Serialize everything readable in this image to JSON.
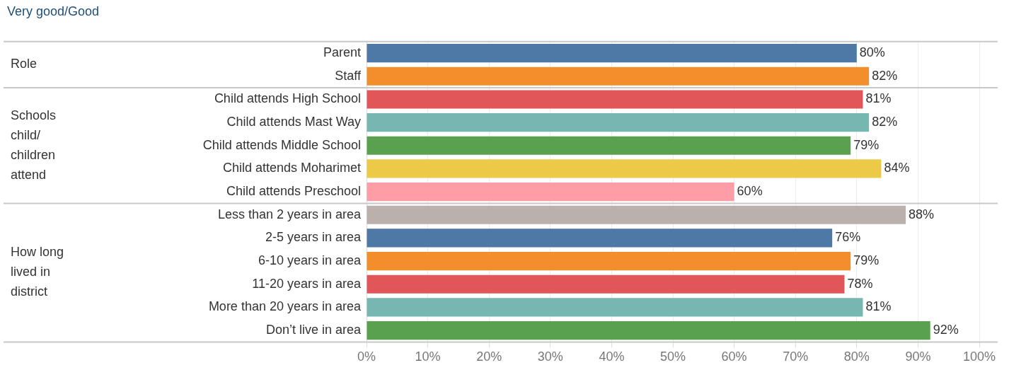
{
  "chart_data": {
    "type": "bar",
    "orientation": "horizontal",
    "subtitle": "Very good/Good",
    "categories": [
      "Parent",
      "Staff",
      "Child attends High School",
      "Child attends Mast Way",
      "Child attends Middle School",
      "Child attends Moharimet",
      "Child attends Preschool",
      "Less than 2 years in area",
      "2-5 years in area",
      "6-10 years in area",
      "11-20 years in area",
      "More than 20 years in area",
      "Don’t live in area"
    ],
    "values": [
      80,
      82,
      81,
      82,
      79,
      84,
      60,
      88,
      76,
      79,
      78,
      81,
      92
    ],
    "value_labels": [
      "80%",
      "82%",
      "81%",
      "82%",
      "79%",
      "84%",
      "60%",
      "88%",
      "76%",
      "79%",
      "78%",
      "81%",
      "92%"
    ],
    "colors": [
      "#4e79a7",
      "#f28e2b",
      "#e15759",
      "#76b7b2",
      "#59a14f",
      "#edc948",
      "#ff9da7",
      "#bab0ac",
      "#4e79a7",
      "#f28e2b",
      "#e15759",
      "#76b7b2",
      "#59a14f"
    ],
    "xlim": [
      0,
      103
    ],
    "xticks": [
      {
        "value": 0,
        "label": "0%"
      },
      {
        "value": 10,
        "label": "10%"
      },
      {
        "value": 20,
        "label": "20%"
      },
      {
        "value": 30,
        "label": "30%"
      },
      {
        "value": 40,
        "label": "40%"
      },
      {
        "value": 50,
        "label": "50%"
      },
      {
        "value": 60,
        "label": "60%"
      },
      {
        "value": 70,
        "label": "70%"
      },
      {
        "value": 80,
        "label": "80%"
      },
      {
        "value": 90,
        "label": "90%"
      },
      {
        "value": 100,
        "label": "100%"
      }
    ],
    "grid": "x",
    "legend": false,
    "annotations": [
      "Role",
      "Schools child/ children attend",
      "How long lived in district"
    ]
  }
}
